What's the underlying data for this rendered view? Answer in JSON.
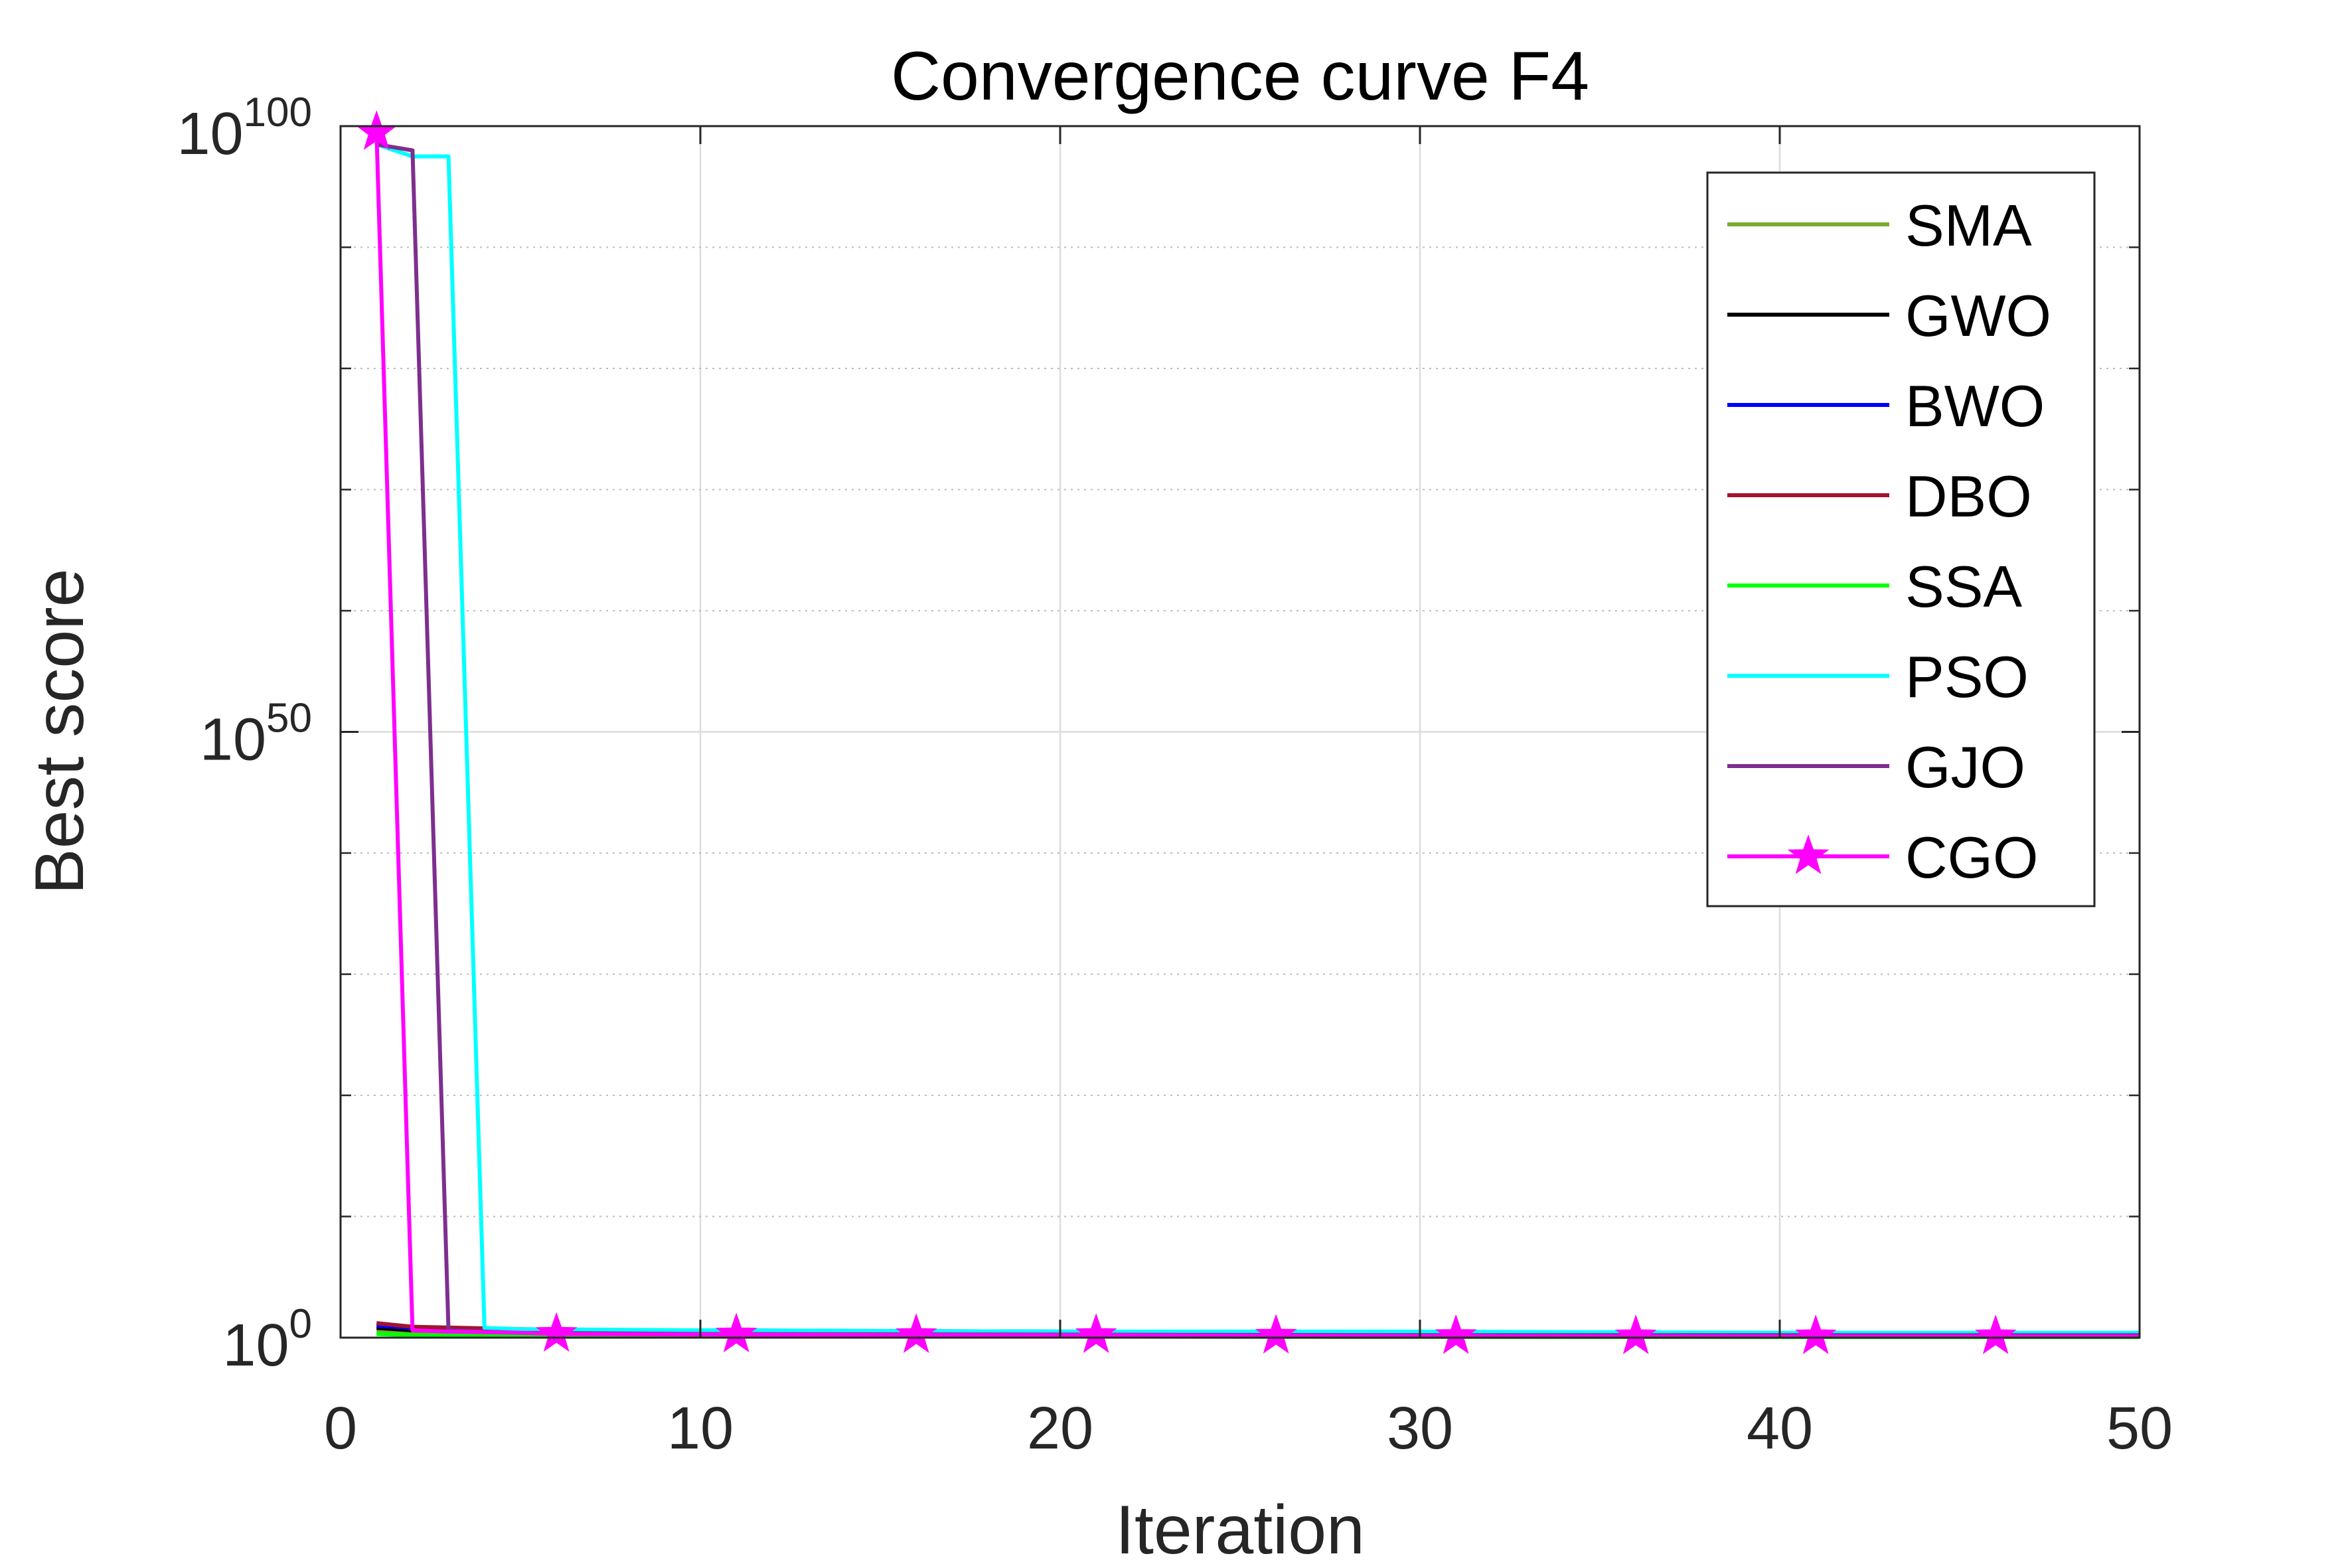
{
  "chart_data": {
    "type": "line",
    "title": "Convergence curve F4",
    "xlabel": "Iteration",
    "ylabel": "Best score",
    "x_ticks": [
      "0",
      "10",
      "20",
      "30",
      "40",
      "50"
    ],
    "y_ticks": [
      {
        "base": "10",
        "exp": "0",
        "value": 0
      },
      {
        "base": "10",
        "exp": "50",
        "value": 50
      },
      {
        "base": "10",
        "exp": "100",
        "value": 100
      }
    ],
    "xlim": [
      0,
      50
    ],
    "ylim_log10": [
      0,
      100
    ],
    "y_scale": "log",
    "grid": true,
    "legend_position": "top-right",
    "series": [
      {
        "name": "SMA",
        "color": "#77AC30",
        "marker": "none",
        "x": [
          1,
          2,
          5,
          10,
          20,
          30,
          40,
          50
        ],
        "y_log10": [
          0.5,
          0.4,
          0.3,
          0.25,
          0.2,
          0.15,
          0.12,
          0.1
        ]
      },
      {
        "name": "GWO",
        "color": "#000000",
        "marker": "none",
        "x": [
          1,
          2,
          5,
          10,
          20,
          30,
          40,
          50
        ],
        "y_log10": [
          0.8,
          0.6,
          0.4,
          0.3,
          0.25,
          0.2,
          0.15,
          0.12
        ]
      },
      {
        "name": "BWO",
        "color": "#0000FF",
        "marker": "none",
        "x": [
          1,
          2,
          5,
          10,
          20,
          30,
          31,
          40,
          50
        ],
        "y_log10": [
          1.0,
          0.8,
          0.6,
          0.6,
          0.5,
          0.45,
          0.3,
          0.3,
          0.3
        ]
      },
      {
        "name": "DBO",
        "color": "#A2142F",
        "marker": "none",
        "x": [
          1,
          2,
          5,
          10,
          20,
          30,
          40,
          50
        ],
        "y_log10": [
          1.2,
          0.9,
          0.7,
          0.5,
          0.4,
          0.3,
          0.25,
          0.2
        ]
      },
      {
        "name": "SSA",
        "color": "#00FF00",
        "marker": "none",
        "x": [
          1,
          2,
          5,
          10,
          20,
          30,
          40,
          50
        ],
        "y_log10": [
          0.3,
          0.2,
          0.15,
          0.1,
          0.08,
          0.06,
          0.05,
          0.05
        ]
      },
      {
        "name": "PSO",
        "color": "#00FFFF",
        "marker": "none",
        "x": [
          1,
          2,
          3,
          4,
          5,
          10,
          20,
          30,
          40,
          50
        ],
        "y_log10": [
          98.5,
          97.5,
          97.5,
          0.8,
          0.7,
          0.6,
          0.5,
          0.5,
          0.4,
          0.4
        ]
      },
      {
        "name": "GJO",
        "color": "#7E2F8E",
        "marker": "none",
        "x": [
          1,
          2,
          3,
          4,
          5,
          10,
          20,
          30,
          40,
          50
        ],
        "y_log10": [
          98.5,
          98.0,
          0.6,
          0.5,
          0.4,
          0.3,
          0.25,
          0.2,
          0.2,
          0.2
        ]
      },
      {
        "name": "CGO",
        "color": "#FF00FF",
        "marker": "star",
        "x": [
          1,
          2,
          3,
          4,
          5,
          6,
          11,
          16,
          21,
          26,
          31,
          36,
          41,
          46,
          50
        ],
        "y_log10": [
          99.5,
          0.6,
          0.5,
          0.45,
          0.4,
          0.3,
          0.25,
          0.2,
          0.2,
          0.15,
          0.12,
          0.1,
          0.1,
          0.1,
          0.1
        ],
        "marker_x": [
          1,
          6,
          11,
          16,
          21,
          26,
          31,
          36,
          41,
          46
        ]
      }
    ]
  }
}
